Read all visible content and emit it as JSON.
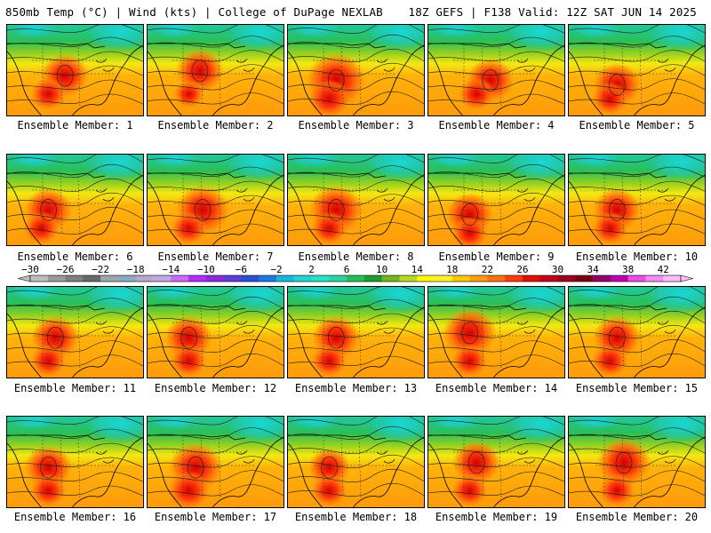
{
  "header": {
    "left": "850mb Temp (°C) | Wind (kts) | College of DuPage NEXLAB",
    "right": "18Z GEFS | F138 Valid: 12Z SAT JUN 14 2025"
  },
  "panels": [
    {
      "label": "Ensemble Member: 1",
      "hot": [
        [
          0.42,
          0.55,
          0.8
        ],
        [
          0.3,
          0.75,
          0.6
        ]
      ]
    },
    {
      "label": "Ensemble Member: 2",
      "hot": [
        [
          0.38,
          0.5,
          0.8
        ],
        [
          0.3,
          0.75,
          0.5
        ]
      ]
    },
    {
      "label": "Ensemble Member: 3",
      "hot": [
        [
          0.35,
          0.6,
          1.0
        ],
        [
          0.3,
          0.8,
          0.7
        ]
      ]
    },
    {
      "label": "Ensemble Member: 4",
      "hot": [
        [
          0.45,
          0.6,
          0.8
        ],
        [
          0.35,
          0.75,
          0.6
        ]
      ]
    },
    {
      "label": "Ensemble Member: 5",
      "hot": [
        [
          0.35,
          0.65,
          0.8
        ],
        [
          0.3,
          0.8,
          0.6
        ]
      ]
    },
    {
      "label": "Ensemble Member: 6",
      "hot": [
        [
          0.3,
          0.6,
          0.8
        ],
        [
          0.25,
          0.8,
          0.6
        ]
      ]
    },
    {
      "label": "Ensemble Member: 7",
      "hot": [
        [
          0.4,
          0.6,
          0.9
        ],
        [
          0.3,
          0.8,
          0.6
        ]
      ]
    },
    {
      "label": "Ensemble Member: 8",
      "hot": [
        [
          0.35,
          0.6,
          0.9
        ],
        [
          0.3,
          0.8,
          0.6
        ]
      ]
    },
    {
      "label": "Ensemble Member: 9",
      "hot": [
        [
          0.3,
          0.65,
          0.8
        ],
        [
          0.3,
          0.85,
          0.6
        ]
      ]
    },
    {
      "label": "Ensemble Member: 10",
      "hot": [
        [
          0.35,
          0.6,
          0.8
        ],
        [
          0.3,
          0.8,
          0.6
        ]
      ]
    },
    {
      "label": "Ensemble Member: 11",
      "hot": [
        [
          0.35,
          0.55,
          0.8
        ],
        [
          0.3,
          0.8,
          0.6
        ]
      ]
    },
    {
      "label": "Ensemble Member: 12",
      "hot": [
        [
          0.3,
          0.55,
          0.8
        ],
        [
          0.3,
          0.8,
          0.6
        ]
      ]
    },
    {
      "label": "Ensemble Member: 13",
      "hot": [
        [
          0.35,
          0.55,
          0.8
        ],
        [
          0.3,
          0.8,
          0.6
        ]
      ]
    },
    {
      "label": "Ensemble Member: 14",
      "hot": [
        [
          0.3,
          0.5,
          0.9
        ],
        [
          0.3,
          0.8,
          0.6
        ]
      ]
    },
    {
      "label": "Ensemble Member: 15",
      "hot": [
        [
          0.35,
          0.55,
          0.8
        ],
        [
          0.3,
          0.8,
          0.6
        ]
      ]
    },
    {
      "label": "Ensemble Member: 16",
      "hot": [
        [
          0.3,
          0.55,
          0.8
        ],
        [
          0.3,
          0.8,
          0.6
        ]
      ]
    },
    {
      "label": "Ensemble Member: 17",
      "hot": [
        [
          0.35,
          0.55,
          0.9
        ],
        [
          0.3,
          0.8,
          0.7
        ]
      ]
    },
    {
      "label": "Ensemble Member: 18",
      "hot": [
        [
          0.3,
          0.55,
          0.7
        ],
        [
          0.3,
          0.8,
          0.6
        ]
      ]
    },
    {
      "label": "Ensemble Member: 19",
      "hot": [
        [
          0.35,
          0.5,
          0.8
        ],
        [
          0.3,
          0.8,
          0.6
        ]
      ]
    },
    {
      "label": "Ensemble Member: 20",
      "hot": [
        [
          0.4,
          0.5,
          0.9
        ],
        [
          0.35,
          0.8,
          0.6
        ]
      ]
    }
  ],
  "colorbar": {
    "ticks": [
      "−30",
      "−26",
      "−22",
      "−18",
      "−14",
      "−10",
      "−6",
      "−2",
      "2",
      "6",
      "10",
      "14",
      "18",
      "22",
      "26",
      "30",
      "34",
      "38",
      "42"
    ],
    "colors": [
      "#bdbdbd",
      "#9a9a9a",
      "#7e7e7e",
      "#686868",
      "#9aa6b0",
      "#8ea7c2",
      "#b7a7c9",
      "#c0a8e0",
      "#cc66ff",
      "#b12cff",
      "#8a2be2",
      "#5a3fd6",
      "#2a50d6",
      "#1e7ae0",
      "#17b6dc",
      "#22d4d4",
      "#24e2c6",
      "#2ad39a",
      "#27bd5a",
      "#1e9e2e",
      "#74b51f",
      "#b6d81e",
      "#f8f50f",
      "#fff22a",
      "#ffc60b",
      "#ff9b0a",
      "#ff6f0a",
      "#ff3a0a",
      "#e01000",
      "#c4001b",
      "#9b0020",
      "#7a0010",
      "#90006a",
      "#c000b0",
      "#e94be3",
      "#f58cf0",
      "#ffbdfc"
    ]
  }
}
